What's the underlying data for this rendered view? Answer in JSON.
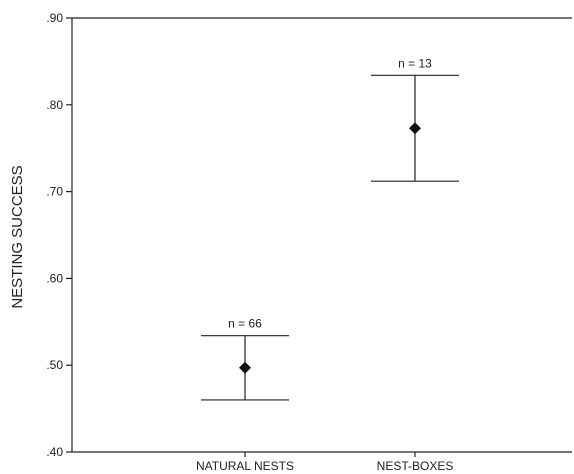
{
  "chart_data": {
    "type": "scatter",
    "title": "",
    "xlabel": "",
    "ylabel": "NESTING SUCCESS",
    "ylim": [
      0.4,
      0.9
    ],
    "yticks": [
      0.4,
      0.5,
      0.6,
      0.7,
      0.8,
      0.9
    ],
    "ytick_labels": [
      ".40",
      ".50",
      ".60",
      ".70",
      ".80",
      ".90"
    ],
    "grid": false,
    "categories": [
      "NATURAL NESTS",
      "NEST-BOXES"
    ],
    "points": [
      {
        "category": "NATURAL NESTS",
        "mean": 0.497,
        "upper": 0.534,
        "lower": 0.46,
        "n_label": "n = 66"
      },
      {
        "category": "NEST-BOXES",
        "mean": 0.773,
        "upper": 0.834,
        "lower": 0.712,
        "n_label": "n = 13"
      }
    ],
    "colors": {
      "axis": "#222222",
      "marker": "#111111"
    }
  }
}
